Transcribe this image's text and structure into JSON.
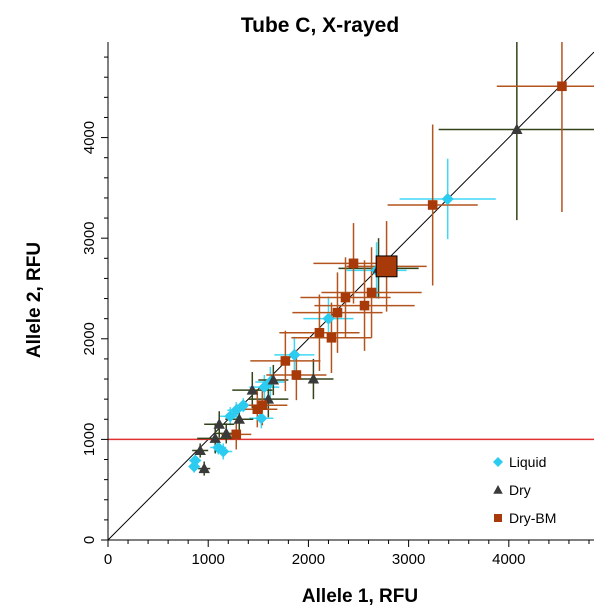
{
  "chart_data": {
    "type": "scatter",
    "title": "Tube C, X-rayed",
    "xlabel": "Allele 1, RFU",
    "ylabel": "Allele 2, RFU",
    "xlim": [
      0,
      4850
    ],
    "ylim": [
      0,
      4950
    ],
    "x_ticks": [
      0,
      1000,
      2000,
      3000,
      4000
    ],
    "y_ticks": [
      0,
      1000,
      2000,
      3000,
      4000
    ],
    "reference_lines": [
      {
        "kind": "identity",
        "color": "#000000"
      },
      {
        "kind": "threshold",
        "y": 1000,
        "color": "#e03030"
      }
    ],
    "legend": {
      "position": "bottom-right"
    },
    "series": [
      {
        "name": "Liquid",
        "marker": "diamond",
        "color": "#2ccbf0",
        "error_color": "#3fd8f5",
        "points": [
          {
            "x": 860,
            "y": 730,
            "xerr": 50,
            "yerr": 60
          },
          {
            "x": 870,
            "y": 790,
            "xerr": 60,
            "yerr": 50
          },
          {
            "x": 1100,
            "y": 920,
            "xerr": 80,
            "yerr": 70
          },
          {
            "x": 1150,
            "y": 880,
            "xerr": 90,
            "yerr": 80
          },
          {
            "x": 1220,
            "y": 1230,
            "xerr": 100,
            "yerr": 90
          },
          {
            "x": 1280,
            "y": 1290,
            "xerr": 90,
            "yerr": 80
          },
          {
            "x": 1350,
            "y": 1340,
            "xerr": 80,
            "yerr": 70
          },
          {
            "x": 1530,
            "y": 1210,
            "xerr": 120,
            "yerr": 100
          },
          {
            "x": 1560,
            "y": 1520,
            "xerr": 150,
            "yerr": 120
          },
          {
            "x": 1620,
            "y": 1570,
            "xerr": 150,
            "yerr": 150
          },
          {
            "x": 1860,
            "y": 1840,
            "xerr": 200,
            "yerr": 180
          },
          {
            "x": 2200,
            "y": 2200,
            "xerr": 250,
            "yerr": 220
          },
          {
            "x": 2680,
            "y": 2680,
            "xerr": 300,
            "yerr": 280
          },
          {
            "x": 3390,
            "y": 3390,
            "xerr": 480,
            "yerr": 400
          }
        ]
      },
      {
        "name": "Dry",
        "marker": "triangle",
        "color": "#3a3a3a",
        "error_color": "#33441a",
        "points": [
          {
            "x": 920,
            "y": 890,
            "xerr": 80,
            "yerr": 70
          },
          {
            "x": 960,
            "y": 710,
            "xerr": 60,
            "yerr": 70
          },
          {
            "x": 1070,
            "y": 1010,
            "xerr": 180,
            "yerr": 150
          },
          {
            "x": 1110,
            "y": 1150,
            "xerr": 150,
            "yerr": 130
          },
          {
            "x": 1180,
            "y": 1060,
            "xerr": 110,
            "yerr": 100
          },
          {
            "x": 1310,
            "y": 1200,
            "xerr": 140,
            "yerr": 120
          },
          {
            "x": 1440,
            "y": 1490,
            "xerr": 200,
            "yerr": 180
          },
          {
            "x": 1600,
            "y": 1400,
            "xerr": 200,
            "yerr": 180
          },
          {
            "x": 1650,
            "y": 1590,
            "xerr": 150,
            "yerr": 150
          },
          {
            "x": 2050,
            "y": 1600,
            "xerr": 200,
            "yerr": 200
          },
          {
            "x": 2700,
            "y": 2700,
            "xerr": 400,
            "yerr": 300
          },
          {
            "x": 4080,
            "y": 4080,
            "xerr": 780,
            "yerr": 900
          }
        ]
      },
      {
        "name": "Dry-BM",
        "marker": "square",
        "color": "#a83a0a",
        "error_color": "#b3541e",
        "points": [
          {
            "x": 1280,
            "y": 1050,
            "xerr": 150,
            "yerr": 150
          },
          {
            "x": 1490,
            "y": 1300,
            "xerr": 200,
            "yerr": 180
          },
          {
            "x": 1540,
            "y": 1340,
            "xerr": 250,
            "yerr": 200
          },
          {
            "x": 1770,
            "y": 1780,
            "xerr": 350,
            "yerr": 300
          },
          {
            "x": 1880,
            "y": 1640,
            "xerr": 300,
            "yerr": 250
          },
          {
            "x": 2110,
            "y": 2060,
            "xerr": 400,
            "yerr": 380
          },
          {
            "x": 2230,
            "y": 2010,
            "xerr": 400,
            "yerr": 350
          },
          {
            "x": 2290,
            "y": 2260,
            "xerr": 450,
            "yerr": 400
          },
          {
            "x": 2370,
            "y": 2410,
            "xerr": 450,
            "yerr": 400
          },
          {
            "x": 2450,
            "y": 2750,
            "xerr": 400,
            "yerr": 400
          },
          {
            "x": 2560,
            "y": 2330,
            "xerr": 500,
            "yerr": 450
          },
          {
            "x": 2630,
            "y": 2460,
            "xerr": 500,
            "yerr": 450
          },
          {
            "x": 2780,
            "y": 2720,
            "xerr": 400,
            "yerr": 450,
            "large": true
          },
          {
            "x": 3240,
            "y": 3330,
            "xerr": 450,
            "yerr": 800
          },
          {
            "x": 4530,
            "y": 4510,
            "xerr": 650,
            "yerr": 1250
          }
        ]
      }
    ]
  }
}
